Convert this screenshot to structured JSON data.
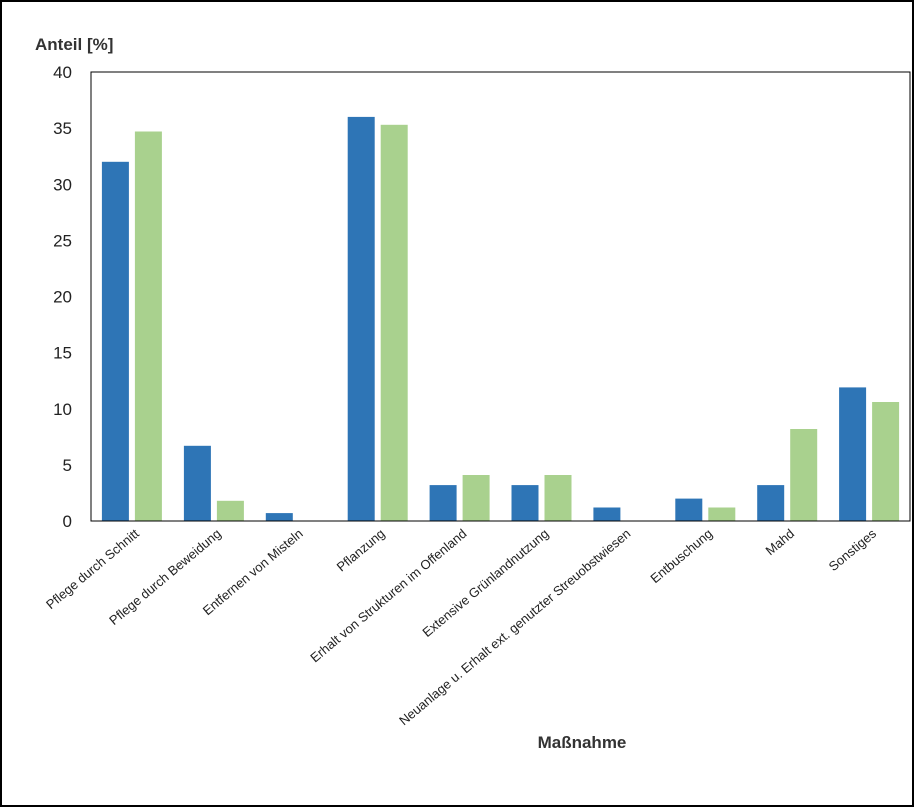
{
  "chart_data": {
    "type": "bar",
    "title": "",
    "ylabel": "Anteil [%]",
    "xlabel": "Maßnahme",
    "ylim": [
      0,
      40
    ],
    "yticks": [
      0,
      5,
      10,
      15,
      20,
      25,
      30,
      35,
      40
    ],
    "grid": false,
    "legend": "none",
    "categories": [
      "Pflege durch Schnitt",
      "Pflege durch Beweidung",
      "Entfernen von Misteln",
      "Pflanzung",
      "Erhalt von Strukturen im Offenland",
      "Extensive Grünlandnutzung",
      "Neuanlage u. Erhalt ext. genutzter Streuobstwiesen",
      "Entbuschung",
      "Mahd",
      "Sonstiges"
    ],
    "series": [
      {
        "color": "#2e75b6",
        "values": [
          32,
          6.7,
          0.7,
          36,
          3.2,
          3.2,
          1.2,
          2.0,
          3.2,
          11.9
        ]
      },
      {
        "color": "#a9d18e",
        "values": [
          34.7,
          1.8,
          0,
          35.3,
          4.1,
          4.1,
          0,
          1.2,
          8.2,
          10.6
        ]
      }
    ]
  }
}
